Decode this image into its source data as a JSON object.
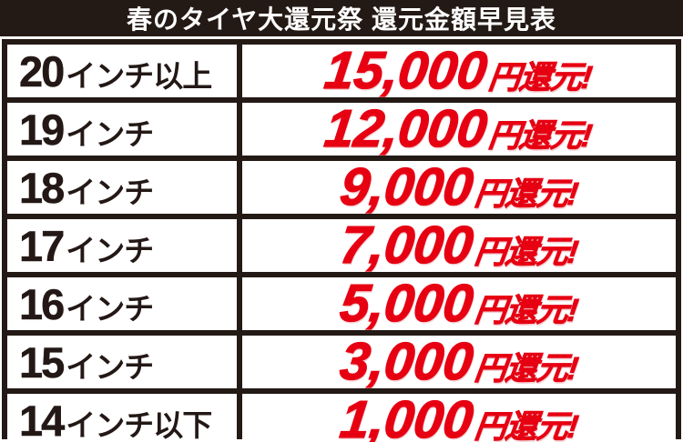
{
  "header": {
    "title": "春のタイヤ大還元祭 還元金額早見表"
  },
  "colors": {
    "accent_red": "#e60012",
    "ink_black": "#231815",
    "background": "#ffffff"
  },
  "chart_data": {
    "type": "table",
    "title": "春のタイヤ大還元祭 還元金額早見表",
    "rows": [
      {
        "size_num": "20",
        "size_label": "インチ以上",
        "amount": "15,000",
        "unit": "円還元!",
        "value_yen": 15000
      },
      {
        "size_num": "19",
        "size_label": "インチ",
        "amount": "12,000",
        "unit": "円還元!",
        "value_yen": 12000
      },
      {
        "size_num": "18",
        "size_label": "インチ",
        "amount": "9,000",
        "unit": "円還元!",
        "value_yen": 9000
      },
      {
        "size_num": "17",
        "size_label": "インチ",
        "amount": "7,000",
        "unit": "円還元!",
        "value_yen": 7000
      },
      {
        "size_num": "16",
        "size_label": "インチ",
        "amount": "5,000",
        "unit": "円還元!",
        "value_yen": 5000
      },
      {
        "size_num": "15",
        "size_label": "インチ",
        "amount": "3,000",
        "unit": "円還元!",
        "value_yen": 3000
      },
      {
        "size_num": "14",
        "size_label": "インチ以下",
        "amount": "1,000",
        "unit": "円還元!",
        "value_yen": 1000
      }
    ]
  }
}
